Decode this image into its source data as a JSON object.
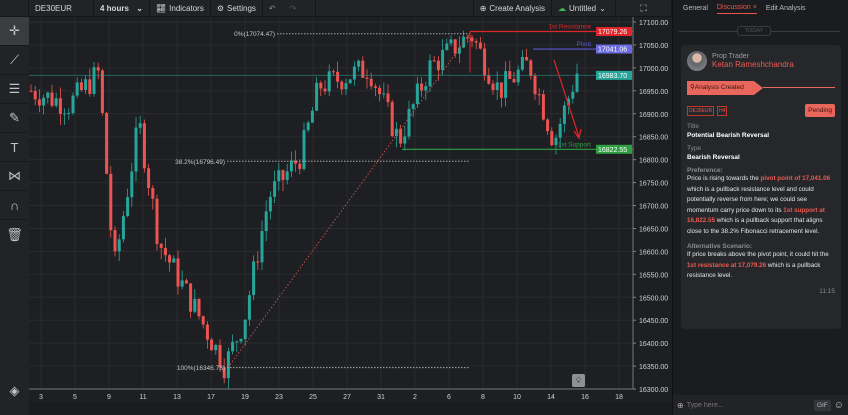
{
  "toolbar": {
    "symbol": "DE30EUR",
    "timeframe": "4 hours",
    "indicators": "Indicators",
    "settings": "Settings",
    "create_analysis": "Create Analysis",
    "layout_name": "Untitled"
  },
  "sidebar": {
    "tools": [
      "crosshair-icon",
      "trendline-icon",
      "fib-lines-icon",
      "brush-icon",
      "text-icon",
      "pattern-icon",
      "magnet-icon",
      "trash-icon"
    ]
  },
  "chart": {
    "y_ticks": [
      "17100.00",
      "17050.00",
      "17000.00",
      "16950.00",
      "16900.00",
      "16850.00",
      "16800.00",
      "16750.00",
      "16700.00",
      "16650.00",
      "16600.00",
      "16550.00",
      "16500.00",
      "16450.00",
      "16400.00",
      "16350.00",
      "16300.00"
    ],
    "x_ticks": [
      "3",
      "5",
      "9",
      "11",
      "13",
      "17",
      "19",
      "23",
      "25",
      "27",
      "31",
      "2",
      "6",
      "8",
      "10",
      "14",
      "16",
      "18"
    ],
    "fib": {
      "f0": "0%(17074.47)",
      "f382": "38.2%(16796.49)",
      "f100": "100%(16346.78)"
    },
    "levels": {
      "resistance_label": "1st Resistance",
      "resistance": "17079.26",
      "pivot_label": "Pivot",
      "pivot": "17041.06",
      "current": "16983.70",
      "support_label": "1st Support",
      "support": "16822.55"
    },
    "colors": {
      "up": "#26a69a",
      "down": "#ef5350",
      "resistance": "#e0262b",
      "pivot": "#5a5ad6",
      "support": "#2ea043",
      "current": "#26a69a"
    }
  },
  "panel": {
    "tabs": [
      "General",
      "Discussion",
      "Edit Analysis"
    ],
    "today": "TODAY",
    "author_role": "Prop Trader",
    "author_name": "Ketan Rameshchandra",
    "status_step": "Analysis Created",
    "tags": [
      "DE30EUR",
      "H4"
    ],
    "pending": "Pending",
    "title_label": "Title",
    "title": "Potential Bearish Reversal",
    "type_label": "Type",
    "type": "Bearish Reversal",
    "pref_label": "Preference:",
    "pref": [
      "Price is rising towards the ",
      "pivot point of 17,041.06",
      " which is a pullback resistance level and could potentially reverse from here; we could see momentum carry price down to its ",
      "1st support at 16,822.55",
      " which is a pullback support that aligns close to the 38.2% Fibonacci retracement level."
    ],
    "alt_label": "Alternative Scenario:",
    "alt": [
      "If price breaks above the pivot point, it could hit the ",
      "1st resistance at 17,079.26",
      " which is a pullback resistance level."
    ],
    "time": "11:15",
    "input_placeholder": "Type here...",
    "gif": "GIF"
  }
}
